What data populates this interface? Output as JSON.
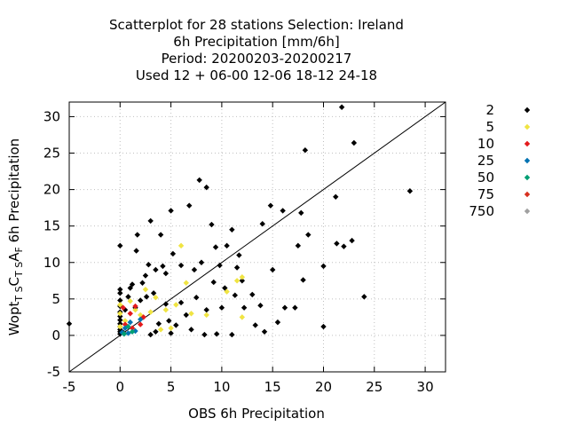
{
  "title_lines": [
    "Scatterplot for   28 stations Selection: Ireland",
    "6h Precipitation [mm/6h]",
    "Period: 20200203-20200217",
    "Used  12 + 06-00 12-06 18-12 24-18"
  ],
  "chart_data": {
    "type": "scatter",
    "xlabel": "OBS 6h Precipitation",
    "ylabel": "Wopt",
    "ylabel_sub1": "T S",
    "ylabel_mid1": "C",
    "ylabel_sub2": "T S",
    "ylabel_mid2": "A",
    "ylabel_sub3": "F",
    "ylabel_tail": " 6h Precipitation",
    "xlim": [
      -5,
      32
    ],
    "ylim": [
      -5,
      32
    ],
    "xticks": [
      -5,
      0,
      5,
      10,
      15,
      20,
      25,
      30
    ],
    "yticks": [
      -5,
      0,
      5,
      10,
      15,
      20,
      25,
      30
    ],
    "grid": true,
    "diagonal": true,
    "legend_position": "right",
    "colors": {
      "2": "#000000",
      "5": "#f0e442",
      "10": "#e41a1c",
      "25": "#0072b2",
      "50": "#009e73",
      "75": "#d7301f",
      "750": "#a0a0a0",
      "axis": "#000000",
      "grid": "#c0c0c0"
    },
    "series": [
      {
        "name": "2",
        "points": [
          [
            -5,
            1.6
          ],
          [
            0,
            12.3
          ],
          [
            0,
            0.2
          ],
          [
            0,
            0.5
          ],
          [
            0,
            0.8
          ],
          [
            0,
            1.2
          ],
          [
            0,
            1.6
          ],
          [
            0,
            2.1
          ],
          [
            0,
            2.6
          ],
          [
            0,
            3.2
          ],
          [
            0,
            4.0
          ],
          [
            0,
            4.8
          ],
          [
            0,
            5.8
          ],
          [
            0,
            6.3
          ],
          [
            0.3,
            0.4
          ],
          [
            0.5,
            3.5
          ],
          [
            0.8,
            5.3
          ],
          [
            1.0,
            6.5
          ],
          [
            1.2,
            7.0
          ],
          [
            1.5,
            3.8
          ],
          [
            1.6,
            11.6
          ],
          [
            1.7,
            13.8
          ],
          [
            2.0,
            4.8
          ],
          [
            2.2,
            7.2
          ],
          [
            2.5,
            8.2
          ],
          [
            2.6,
            5.3
          ],
          [
            2.8,
            9.7
          ],
          [
            3.0,
            15.7
          ],
          [
            3.0,
            0.1
          ],
          [
            3.3,
            5.8
          ],
          [
            3.5,
            9.0
          ],
          [
            3.5,
            0.5
          ],
          [
            3.8,
            1.6
          ],
          [
            4.0,
            13.8
          ],
          [
            4.2,
            9.5
          ],
          [
            4.5,
            8.5
          ],
          [
            4.5,
            4.3
          ],
          [
            4.8,
            2.0
          ],
          [
            5.0,
            17.1
          ],
          [
            5.2,
            11.2
          ],
          [
            5.0,
            0.3
          ],
          [
            5.5,
            1.4
          ],
          [
            6.0,
            9.6
          ],
          [
            6.0,
            4.5
          ],
          [
            6.5,
            2.8
          ],
          [
            6.8,
            17.8
          ],
          [
            7.0,
            0.8
          ],
          [
            7.3,
            9.0
          ],
          [
            7.5,
            5.2
          ],
          [
            7.8,
            21.3
          ],
          [
            8.0,
            10.0
          ],
          [
            8.3,
            0.1
          ],
          [
            8.5,
            20.3
          ],
          [
            8.5,
            3.5
          ],
          [
            9.0,
            15.2
          ],
          [
            9.2,
            7.3
          ],
          [
            9.4,
            12.1
          ],
          [
            9.5,
            0.2
          ],
          [
            9.8,
            9.6
          ],
          [
            10.0,
            3.8
          ],
          [
            10.3,
            6.5
          ],
          [
            10.5,
            12.3
          ],
          [
            11.0,
            14.5
          ],
          [
            11.0,
            0.1
          ],
          [
            11.3,
            5.5
          ],
          [
            11.5,
            9.3
          ],
          [
            11.7,
            11.0
          ],
          [
            12.0,
            7.5
          ],
          [
            12.2,
            3.8
          ],
          [
            13.0,
            5.6
          ],
          [
            13.3,
            1.4
          ],
          [
            13.8,
            4.1
          ],
          [
            14.0,
            15.3
          ],
          [
            14.2,
            0.5
          ],
          [
            14.8,
            17.8
          ],
          [
            15.0,
            9.0
          ],
          [
            15.5,
            1.8
          ],
          [
            16.0,
            17.1
          ],
          [
            16.2,
            3.8
          ],
          [
            17.2,
            3.8
          ],
          [
            17.5,
            12.3
          ],
          [
            17.8,
            16.8
          ],
          [
            18.0,
            7.6
          ],
          [
            18.2,
            25.4
          ],
          [
            18.5,
            13.8
          ],
          [
            20.0,
            9.5
          ],
          [
            20.0,
            1.2
          ],
          [
            21.2,
            19.0
          ],
          [
            21.3,
            12.6
          ],
          [
            21.8,
            31.3
          ],
          [
            22.0,
            12.2
          ],
          [
            22.8,
            13.0
          ],
          [
            23.0,
            26.4
          ],
          [
            24.0,
            5.3
          ],
          [
            28.5,
            19.8
          ]
        ]
      },
      {
        "name": "5",
        "points": [
          [
            0,
            1.2
          ],
          [
            0,
            3.0
          ],
          [
            0,
            4.2
          ],
          [
            0.5,
            2.0
          ],
          [
            1.0,
            4.7
          ],
          [
            1.5,
            3.5
          ],
          [
            2.0,
            2.8
          ],
          [
            2.5,
            6.3
          ],
          [
            3.0,
            3.2
          ],
          [
            3.5,
            5.2
          ],
          [
            4.0,
            0.8
          ],
          [
            4.5,
            3.5
          ],
          [
            5.0,
            1.0
          ],
          [
            5.5,
            4.2
          ],
          [
            6.0,
            12.3
          ],
          [
            6.5,
            7.2
          ],
          [
            7.0,
            3.0
          ],
          [
            8.5,
            2.8
          ],
          [
            10.5,
            6.0
          ],
          [
            11.5,
            7.5
          ],
          [
            12.0,
            8.0
          ],
          [
            12.0,
            2.5
          ]
        ]
      },
      {
        "name": "10",
        "points": [
          [
            0.5,
            1.5
          ],
          [
            1.0,
            3.0
          ],
          [
            1.5,
            4.0
          ],
          [
            2.0,
            1.5
          ],
          [
            0.3,
            3.8
          ],
          [
            1.2,
            1.0
          ],
          [
            2.3,
            2.5
          ]
        ]
      },
      {
        "name": "25",
        "points": [
          [
            0.2,
            0.4
          ],
          [
            0.5,
            1.0
          ],
          [
            0.8,
            0.3
          ],
          [
            1.0,
            1.8
          ],
          [
            1.5,
            0.6
          ],
          [
            2.0,
            2.2
          ]
        ]
      },
      {
        "name": "50",
        "points": [
          [
            0.4,
            0.2
          ],
          [
            0.8,
            1.2
          ],
          [
            1.2,
            0.5
          ]
        ]
      },
      {
        "name": "75",
        "points": []
      },
      {
        "name": "750",
        "points": []
      }
    ]
  }
}
